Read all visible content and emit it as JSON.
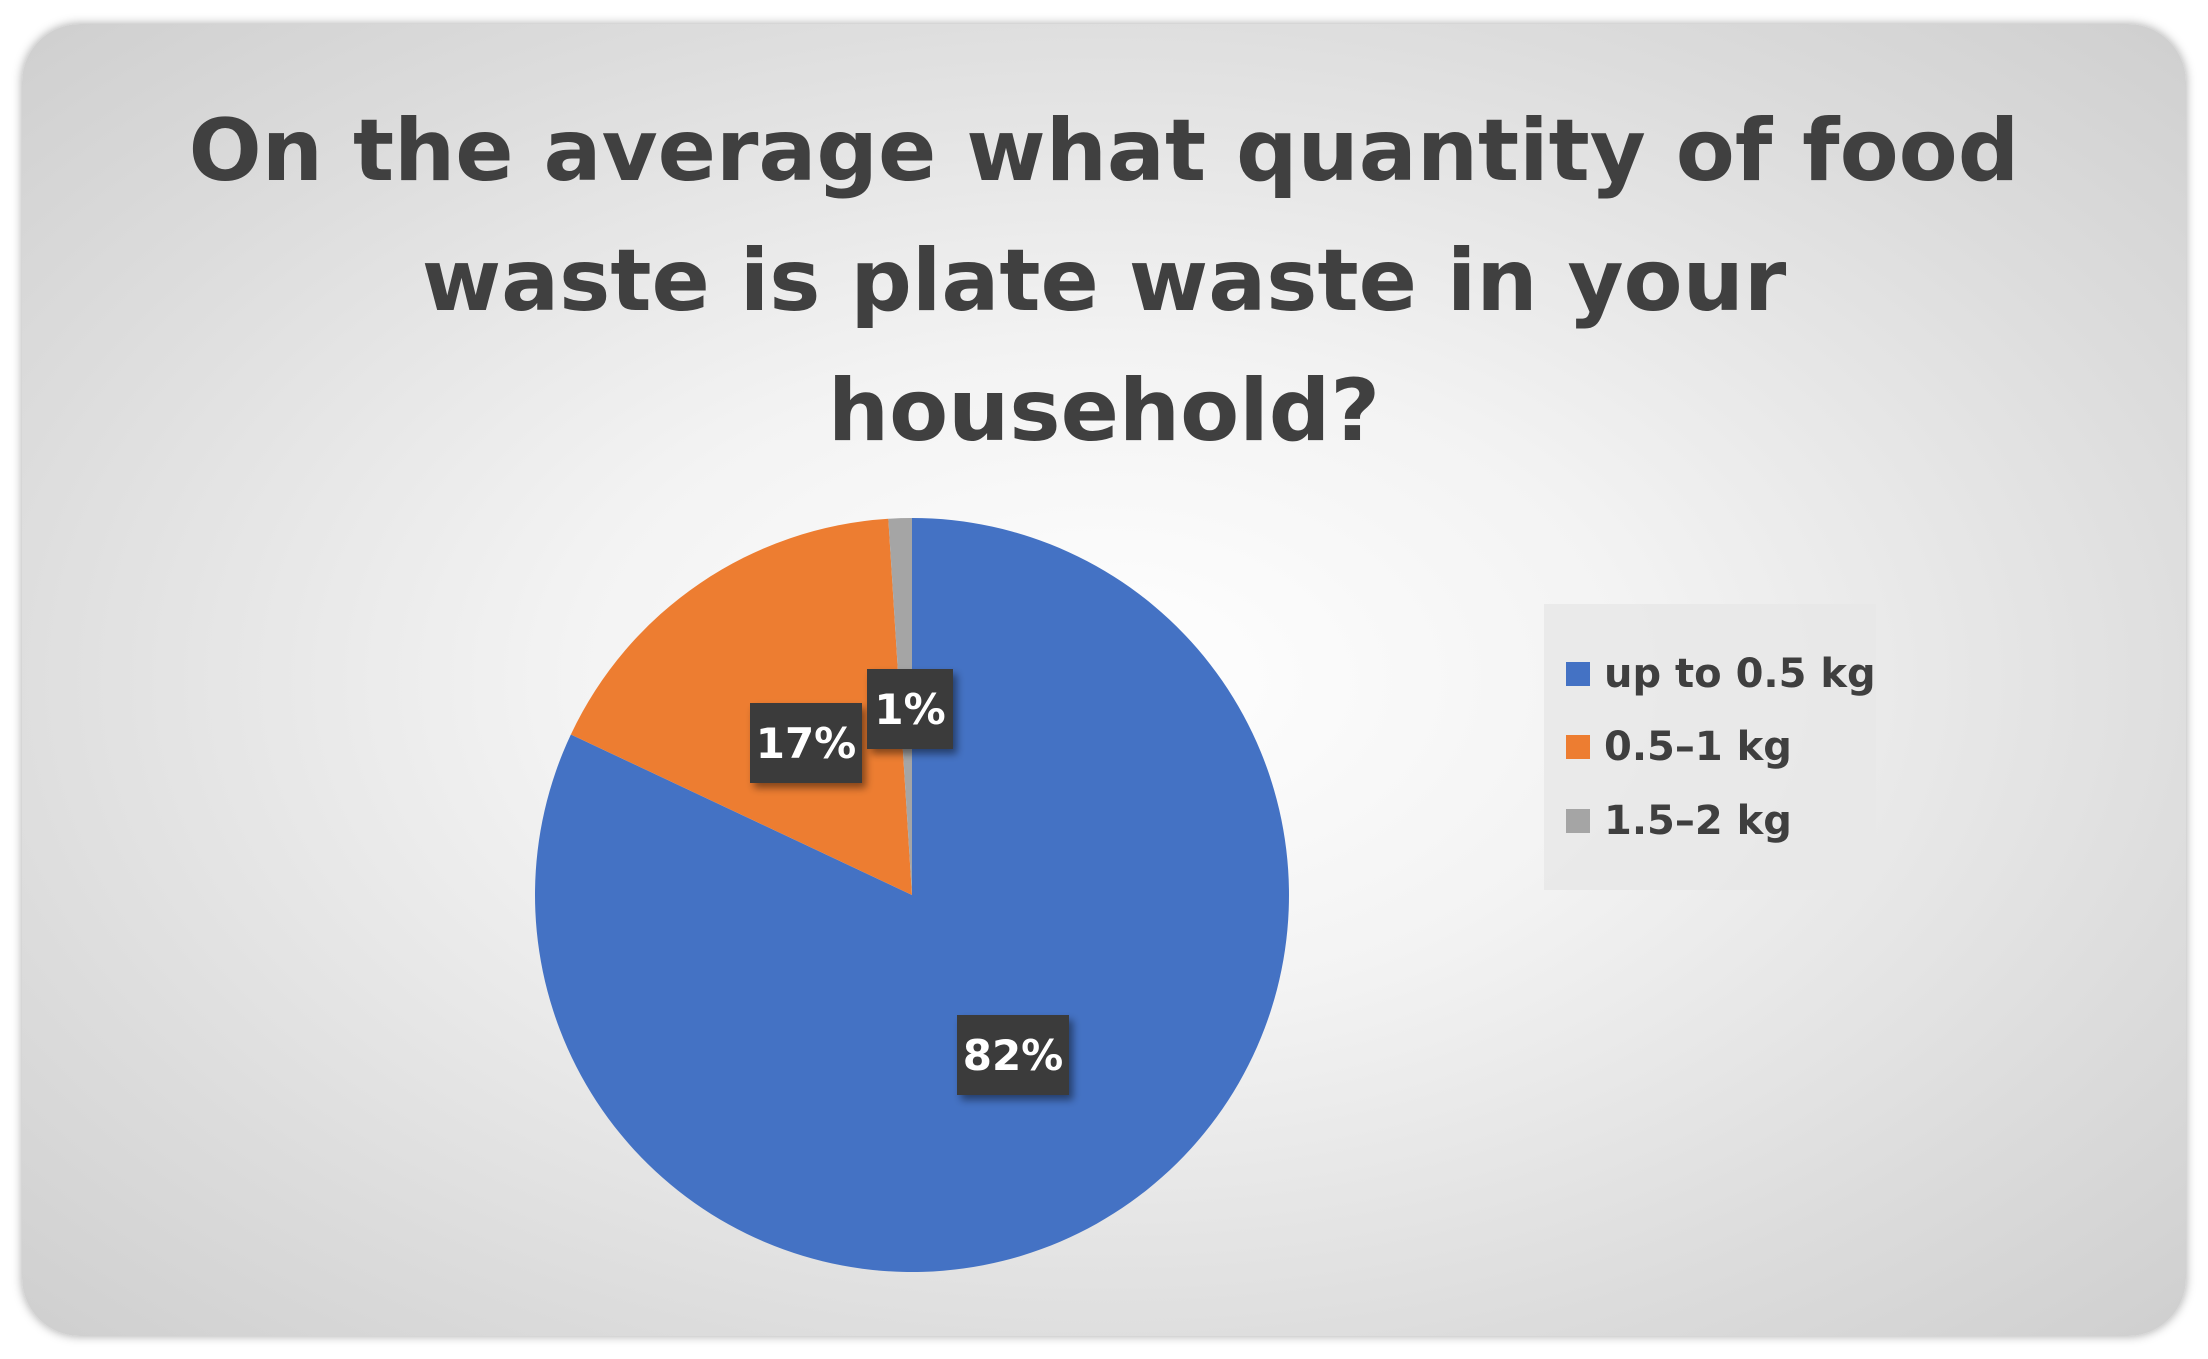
{
  "chart_data": {
    "type": "pie",
    "title": "On the average what quantity of food waste is plate waste in your household?",
    "title_lines": [
      "On the average what quantity of food",
      "waste is plate waste in your",
      "household?"
    ],
    "categories": [
      "up to 0.5 kg",
      "0.5–1 kg",
      "1.5–2 kg"
    ],
    "values": [
      82,
      17,
      1
    ],
    "data_labels": [
      "82%",
      "17%",
      "1%"
    ],
    "colors": [
      "#4472C4",
      "#ED7D31",
      "#A5A5A5"
    ],
    "legend_position": "right",
    "start_angle_deg": 0,
    "direction": "clockwise"
  }
}
